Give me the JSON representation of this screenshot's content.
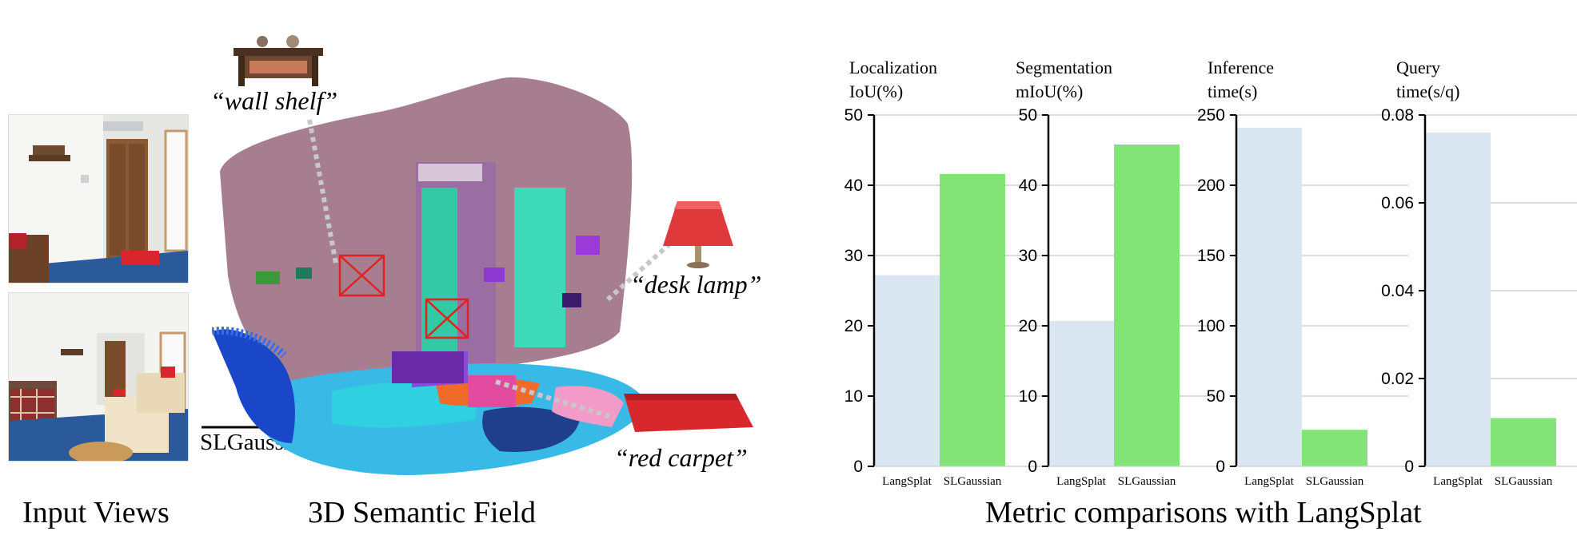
{
  "figure": {
    "captions": {
      "input_views": "Input Views",
      "semantic_field": "3D Semantic Field",
      "metrics": "Metric comparisons with LangSplat"
    },
    "method_label": "SLGaussian",
    "queries": {
      "wall_shelf": "“wall shelf”",
      "desk_lamp": "“desk lamp”",
      "red_carpet": "“red carpet”"
    }
  },
  "colors": {
    "langsplat": "#dbe6f3",
    "slgaussian": "#82e377",
    "gridline": "#cfcfcf"
  },
  "chart_data": [
    {
      "type": "bar",
      "title": [
        "Localization",
        "IoU(%)"
      ],
      "categories": [
        "LangSplat",
        "SLGaussian"
      ],
      "values": [
        27.2,
        41.6
      ],
      "ylim": [
        0,
        50
      ],
      "yticks": [
        0,
        10,
        20,
        30,
        40,
        50
      ],
      "ytick_labels": [
        "0",
        "10",
        "20",
        "30",
        "40",
        "50"
      ],
      "grid": true
    },
    {
      "type": "bar",
      "title": [
        "Segmentation",
        "mIoU(%)"
      ],
      "categories": [
        "LangSplat",
        "SLGaussian"
      ],
      "values": [
        20.7,
        45.8
      ],
      "ylim": [
        0,
        50
      ],
      "yticks": [
        0,
        10,
        20,
        30,
        40,
        50
      ],
      "ytick_labels": [
        "0",
        "10",
        "20",
        "30",
        "40",
        "50"
      ],
      "grid": true
    },
    {
      "type": "bar",
      "title": [
        "Inference",
        "time(s)"
      ],
      "categories": [
        "LangSplat",
        "SLGaussian"
      ],
      "values": [
        241,
        26
      ],
      "ylim": [
        0,
        250
      ],
      "yticks": [
        0,
        50,
        100,
        150,
        200,
        250
      ],
      "ytick_labels": [
        "0",
        "50",
        "100",
        "150",
        "200",
        "250"
      ],
      "grid": true
    },
    {
      "type": "bar",
      "title": [
        "Query",
        "time(s/q)"
      ],
      "categories": [
        "LangSplat",
        "SLGaussian"
      ],
      "values": [
        0.076,
        0.011
      ],
      "ylim": [
        0,
        0.08
      ],
      "yticks": [
        0,
        0.02,
        0.04,
        0.06,
        0.08
      ],
      "ytick_labels": [
        "0",
        "0.02",
        "0.04",
        "0.06",
        "0.08"
      ],
      "grid": true
    }
  ]
}
